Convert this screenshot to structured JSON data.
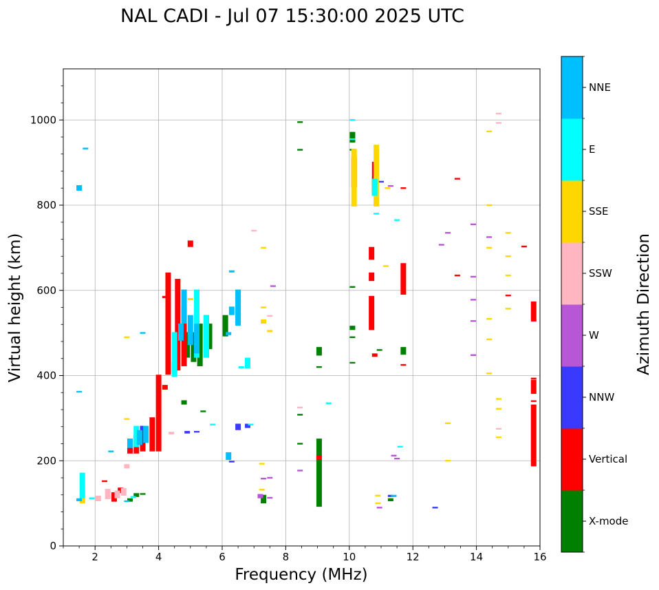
{
  "chart_data": {
    "type": "scatter",
    "title": "NAL CADI - Jul 07 15:30:00 2025 UTC",
    "xlabel": "Frequency (MHz)",
    "ylabel": "Virtual height (km)",
    "xlim": [
      1,
      16
    ],
    "ylim": [
      0,
      1120
    ],
    "xticks": [
      2,
      4,
      6,
      8,
      10,
      12,
      14,
      16
    ],
    "yticks": [
      0,
      200,
      400,
      600,
      800,
      1000
    ],
    "grid": true,
    "colorbar": {
      "label": "Azimuth Direction",
      "categories": [
        {
          "name": "X-mode",
          "color": "#008000"
        },
        {
          "name": "Vertical",
          "color": "#ff0000"
        },
        {
          "name": "NNW",
          "color": "#3a3aff"
        },
        {
          "name": "W",
          "color": "#b857d6"
        },
        {
          "name": "SSW",
          "color": "#ffb6c1"
        },
        {
          "name": "SSE",
          "color": "#ffd700"
        },
        {
          "name": "E",
          "color": "#00ffff"
        },
        {
          "name": "NNE",
          "color": "#00bfff"
        }
      ]
    },
    "series": [
      {
        "name": "X-mode",
        "points": [
          [
            9.05,
            90,
            250
          ],
          [
            9.05,
            420,
            420
          ],
          [
            9.05,
            445,
            465
          ],
          [
            10.1,
            430,
            430
          ],
          [
            10.1,
            490,
            490
          ],
          [
            10.1,
            505,
            515
          ],
          [
            10.1,
            608,
            608
          ],
          [
            10.1,
            930,
            930
          ],
          [
            10.1,
            945,
            970
          ],
          [
            10.8,
            820,
            865
          ],
          [
            8.45,
            930,
            930
          ],
          [
            8.45,
            995,
            995
          ],
          [
            8.45,
            308,
            308
          ],
          [
            8.45,
            240,
            240
          ],
          [
            11.7,
            447,
            465
          ],
          [
            5.3,
            420,
            520
          ],
          [
            5.5,
            440,
            540
          ],
          [
            5.1,
            430,
            500
          ],
          [
            4.8,
            330,
            340
          ],
          [
            5.4,
            316,
            316
          ],
          [
            3.1,
            102,
            110
          ],
          [
            3.3,
            113,
            122
          ],
          [
            3.5,
            120,
            122
          ],
          [
            7.3,
            98,
            118
          ],
          [
            10.95,
            460,
            460
          ],
          [
            11.3,
            103,
            110
          ],
          [
            6.1,
            490,
            540
          ],
          [
            4.9,
            440,
            500
          ],
          [
            5.6,
            460,
            520
          ]
        ]
      },
      {
        "name": "Vertical",
        "points": [
          [
            15.8,
            185,
            330
          ],
          [
            15.8,
            340,
            340
          ],
          [
            15.8,
            355,
            388
          ],
          [
            15.8,
            393,
            393
          ],
          [
            15.8,
            525,
            572
          ],
          [
            15.5,
            703,
            703
          ],
          [
            15.0,
            588,
            588
          ],
          [
            10.7,
            505,
            585
          ],
          [
            10.7,
            620,
            640
          ],
          [
            10.7,
            670,
            700
          ],
          [
            11.7,
            425,
            425
          ],
          [
            11.7,
            588,
            662
          ],
          [
            11.7,
            840,
            840
          ],
          [
            13.4,
            635,
            635
          ],
          [
            13.4,
            862,
            862
          ],
          [
            9.05,
            200,
            210
          ],
          [
            10.8,
            442,
            450
          ],
          [
            4.0,
            220,
            400
          ],
          [
            3.8,
            220,
            300
          ],
          [
            3.5,
            220,
            280
          ],
          [
            3.3,
            215,
            260
          ],
          [
            3.1,
            215,
            250
          ],
          [
            4.3,
            400,
            640
          ],
          [
            4.5,
            405,
            430
          ],
          [
            4.6,
            410,
            625
          ],
          [
            4.8,
            420,
            560
          ],
          [
            4.2,
            580,
            585
          ],
          [
            4.2,
            365,
            376
          ],
          [
            2.8,
            122,
            135
          ],
          [
            2.6,
            102,
            124
          ],
          [
            2.3,
            150,
            152
          ],
          [
            5.0,
            700,
            715
          ],
          [
            10.15,
            840,
            910
          ],
          [
            10.8,
            830,
            900
          ]
        ]
      },
      {
        "name": "NNW",
        "points": [
          [
            6.5,
            270,
            285
          ],
          [
            6.8,
            275,
            285
          ],
          [
            6.3,
            198,
            198
          ],
          [
            12.7,
            90,
            90
          ],
          [
            11.3,
            113,
            118
          ],
          [
            4.9,
            262,
            268
          ],
          [
            5.2,
            265,
            268
          ],
          [
            11.0,
            855,
            855
          ],
          [
            3.5,
            270,
            280
          ]
        ]
      },
      {
        "name": "W",
        "points": [
          [
            12.9,
            707,
            707
          ],
          [
            13.1,
            735,
            735
          ],
          [
            13.9,
            755,
            755
          ],
          [
            13.9,
            632,
            632
          ],
          [
            13.9,
            578,
            578
          ],
          [
            13.9,
            528,
            528
          ],
          [
            13.9,
            448,
            448
          ],
          [
            14.4,
            725,
            725
          ],
          [
            11.3,
            845,
            845
          ],
          [
            11.4,
            212,
            212
          ],
          [
            11.5,
            205,
            205
          ],
          [
            10.95,
            90,
            90
          ],
          [
            8.45,
            177,
            177
          ],
          [
            7.2,
            110,
            120
          ],
          [
            7.5,
            113,
            113
          ],
          [
            7.6,
            610,
            610
          ],
          [
            7.3,
            158,
            158
          ],
          [
            7.5,
            160,
            160
          ]
        ]
      },
      {
        "name": "SSW",
        "points": [
          [
            14.7,
            1015,
            1015
          ],
          [
            14.7,
            993,
            993
          ],
          [
            14.7,
            275,
            275
          ],
          [
            8.45,
            325,
            325
          ],
          [
            7.0,
            740,
            740
          ],
          [
            7.5,
            540,
            540
          ],
          [
            2.1,
            103,
            116
          ],
          [
            2.4,
            108,
            132
          ],
          [
            2.7,
            110,
            128
          ],
          [
            3.0,
            180,
            190
          ],
          [
            2.9,
            116,
            134
          ],
          [
            4.4,
            260,
            266
          ]
        ]
      },
      {
        "name": "SSE",
        "points": [
          [
            10.85,
            795,
            940
          ],
          [
            10.15,
            795,
            930
          ],
          [
            14.4,
            973,
            973
          ],
          [
            14.4,
            800,
            800
          ],
          [
            14.4,
            700,
            700
          ],
          [
            14.4,
            485,
            485
          ],
          [
            14.4,
            533,
            533
          ],
          [
            14.4,
            405,
            405
          ],
          [
            14.7,
            345,
            345
          ],
          [
            14.7,
            322,
            322
          ],
          [
            14.7,
            255,
            255
          ],
          [
            15.0,
            735,
            735
          ],
          [
            15.0,
            680,
            680
          ],
          [
            15.0,
            635,
            635
          ],
          [
            15.0,
            557,
            557
          ],
          [
            13.1,
            200,
            200
          ],
          [
            13.1,
            288,
            288
          ],
          [
            11.15,
            657,
            657
          ],
          [
            11.2,
            840,
            840
          ],
          [
            7.5,
            500,
            505
          ],
          [
            7.3,
            560,
            560
          ],
          [
            7.3,
            520,
            530
          ],
          [
            7.3,
            700,
            700
          ],
          [
            7.25,
            132,
            132
          ],
          [
            7.25,
            193,
            193
          ],
          [
            10.9,
            100,
            100
          ],
          [
            10.9,
            118,
            118
          ],
          [
            1.6,
            98,
            130
          ],
          [
            3.0,
            490,
            490
          ],
          [
            3.0,
            298,
            298
          ],
          [
            5.0,
            575,
            580
          ]
        ]
      },
      {
        "name": "E",
        "points": [
          [
            10.1,
            1000,
            1000
          ],
          [
            10.1,
            955,
            955
          ],
          [
            10.85,
            780,
            780
          ],
          [
            10.8,
            820,
            860
          ],
          [
            11.6,
            233,
            233
          ],
          [
            11.5,
            765,
            765
          ],
          [
            9.35,
            335,
            335
          ],
          [
            6.8,
            415,
            440
          ],
          [
            6.6,
            415,
            420
          ],
          [
            6.9,
            282,
            285
          ],
          [
            5.7,
            285,
            285
          ],
          [
            5.5,
            440,
            540
          ],
          [
            5.2,
            440,
            600
          ],
          [
            4.5,
            395,
            500
          ],
          [
            3.2,
            112,
            115
          ],
          [
            1.6,
            110,
            170
          ],
          [
            1.9,
            108,
            112
          ],
          [
            3.3,
            230,
            280
          ]
        ]
      },
      {
        "name": "NNE",
        "points": [
          [
            1.5,
            832,
            845
          ],
          [
            1.5,
            362,
            362
          ],
          [
            1.7,
            933,
            933
          ],
          [
            6.2,
            200,
            218
          ],
          [
            6.3,
            540,
            560
          ],
          [
            6.5,
            515,
            600
          ],
          [
            6.3,
            640,
            645
          ],
          [
            6.2,
            493,
            500
          ],
          [
            5.2,
            450,
            520
          ],
          [
            5.0,
            470,
            540
          ],
          [
            4.7,
            480,
            520
          ],
          [
            4.8,
            520,
            600
          ],
          [
            3.4,
            235,
            270
          ],
          [
            3.6,
            240,
            280
          ],
          [
            3.1,
            228,
            250
          ],
          [
            2.5,
            222,
            222
          ],
          [
            3.5,
            500,
            500
          ],
          [
            1.5,
            103,
            110
          ],
          [
            3.0,
            102,
            105
          ],
          [
            11.4,
            113,
            118
          ]
        ]
      }
    ]
  }
}
